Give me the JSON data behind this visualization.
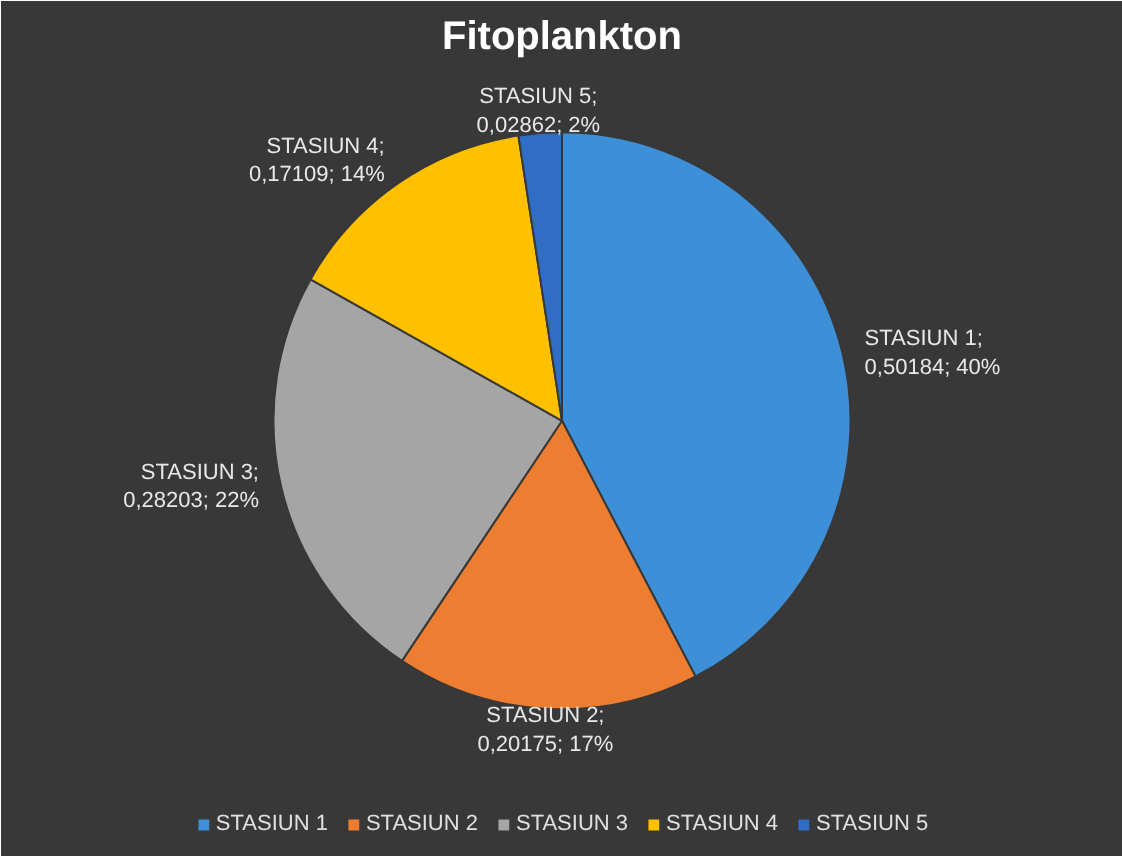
{
  "chart_data": {
    "type": "pie",
    "title": "Fitoplankton",
    "categories": [
      "STASIUN 1",
      "STASIUN 2",
      "STASIUN 3",
      "STASIUN 4",
      "STASIUN 5"
    ],
    "values": [
      0.50184,
      0.20175,
      0.28203,
      0.17109,
      0.02862
    ],
    "value_labels": [
      "STASIUN 1; 0,50184; 40%",
      "STASIUN 2; 0,20175; 17%",
      "STASIUN 3; 0,28203; 22%",
      "STASIUN 4; 0,17109; 14%",
      "STASIUN 5; 0,02862; 2%"
    ],
    "colors": [
      "#3d8fd8",
      "#ed7d31",
      "#a5a5a5",
      "#ffc000",
      "#2f6ec4"
    ],
    "legend": "bottom"
  }
}
